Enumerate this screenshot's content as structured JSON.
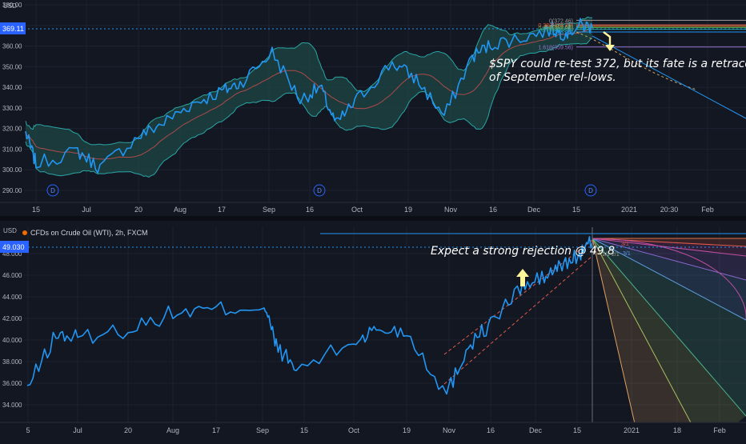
{
  "colors": {
    "background": "#131722",
    "grid": "#1e2230",
    "price_line": "#2196f3",
    "band_fill": "#1f4d4a",
    "band_edge": "#2aa6a6",
    "ma": "#b04a4a",
    "last_price_tag": "#2962ff",
    "annotation": "#ffffff",
    "arrow": "#fff59d",
    "text_muted": "#b2b5be"
  },
  "top_panel": {
    "currency": "USD",
    "last_price": "369.11",
    "annotation_line1": "$SPY could re-test 372, but its fate is a retrace",
    "annotation_line2": "of September rel-lows.",
    "fib_labels": [
      "0(372.46)",
      "0.382(370.28)",
      "0.5(369.62)",
      "0.618(368.95)",
      "0.786(368.1)",
      "1(366.81)",
      "1.618(359.56)"
    ],
    "dividend_marker": "D",
    "y_ticks": [
      "380.00",
      "370.00",
      "360.00",
      "350.00",
      "340.00",
      "330.00",
      "320.00",
      "310.00",
      "300.00",
      "290.00"
    ],
    "x_ticks": [
      "15",
      "Jul",
      "20",
      "Aug",
      "17",
      "Sep",
      "16",
      "Oct",
      "19",
      "Nov",
      "16",
      "Dec",
      "15",
      "2021",
      "20:30",
      "Feb"
    ]
  },
  "bottom_panel": {
    "legend": "CFDs on Crude Oil (WTI), 2h, FXCM",
    "currency": "USD",
    "last_price": "49.030",
    "annotation": "Expect a strong rejection @ 49.8",
    "fan_labels": [
      "3/1",
      "1/1",
      "2/1",
      "3/1"
    ],
    "y_ticks": [
      "48.000",
      "46.000",
      "44.000",
      "42.000",
      "40.000",
      "38.000",
      "36.000",
      "34.000"
    ],
    "x_ticks": [
      "5",
      "Jul",
      "20",
      "Aug",
      "17",
      "Sep",
      "15",
      "Oct",
      "19",
      "Nov",
      "16",
      "Dec",
      "15",
      "2021",
      "18",
      "Feb"
    ]
  },
  "chart_data": [
    {
      "type": "line",
      "symbol": "SPY",
      "x": [
        "Jun 15",
        "Jun 22",
        "Jul 1",
        "Jul 10",
        "Jul 20",
        "Aug 1",
        "Aug 10",
        "Aug 17",
        "Aug 25",
        "Sep 2",
        "Sep 8",
        "Sep 16",
        "Sep 23",
        "Oct 1",
        "Oct 12",
        "Oct 19",
        "Oct 30",
        "Nov 9",
        "Nov 16",
        "Nov 25",
        "Dec 4",
        "Dec 10",
        "Dec 15",
        "Dec 18"
      ],
      "series": [
        {
          "values": [
            318,
            303,
            309,
            301,
            316,
            323,
            332,
            338,
            342,
            357,
            334,
            340,
            322,
            334,
            352,
            344,
            326,
            355,
            361,
            364,
            368,
            366,
            370,
            369.11
          ]
        }
      ],
      "ylim": [
        285,
        385
      ]
    },
    {
      "type": "line",
      "symbol": "WTI",
      "x": [
        "Jun 5",
        "Jun 15",
        "Jul 1",
        "Jul 20",
        "Aug 1",
        "Aug 17",
        "Sep 1",
        "Sep 8",
        "Sep 15",
        "Oct 1",
        "Oct 12",
        "Oct 19",
        "Nov 2",
        "Nov 9",
        "Nov 16",
        "Nov 25",
        "Dec 4",
        "Dec 10",
        "Dec 15",
        "Dec 18"
      ],
      "series": [
        {
          "values": [
            35.5,
            40.5,
            40.2,
            41.0,
            42.5,
            42.8,
            43.2,
            39.5,
            37.2,
            39.8,
            41.0,
            40.8,
            35.0,
            39.5,
            41.5,
            44.8,
            45.8,
            46.8,
            47.8,
            49.03
          ]
        }
      ],
      "ylim": [
        33,
        50
      ]
    }
  ]
}
